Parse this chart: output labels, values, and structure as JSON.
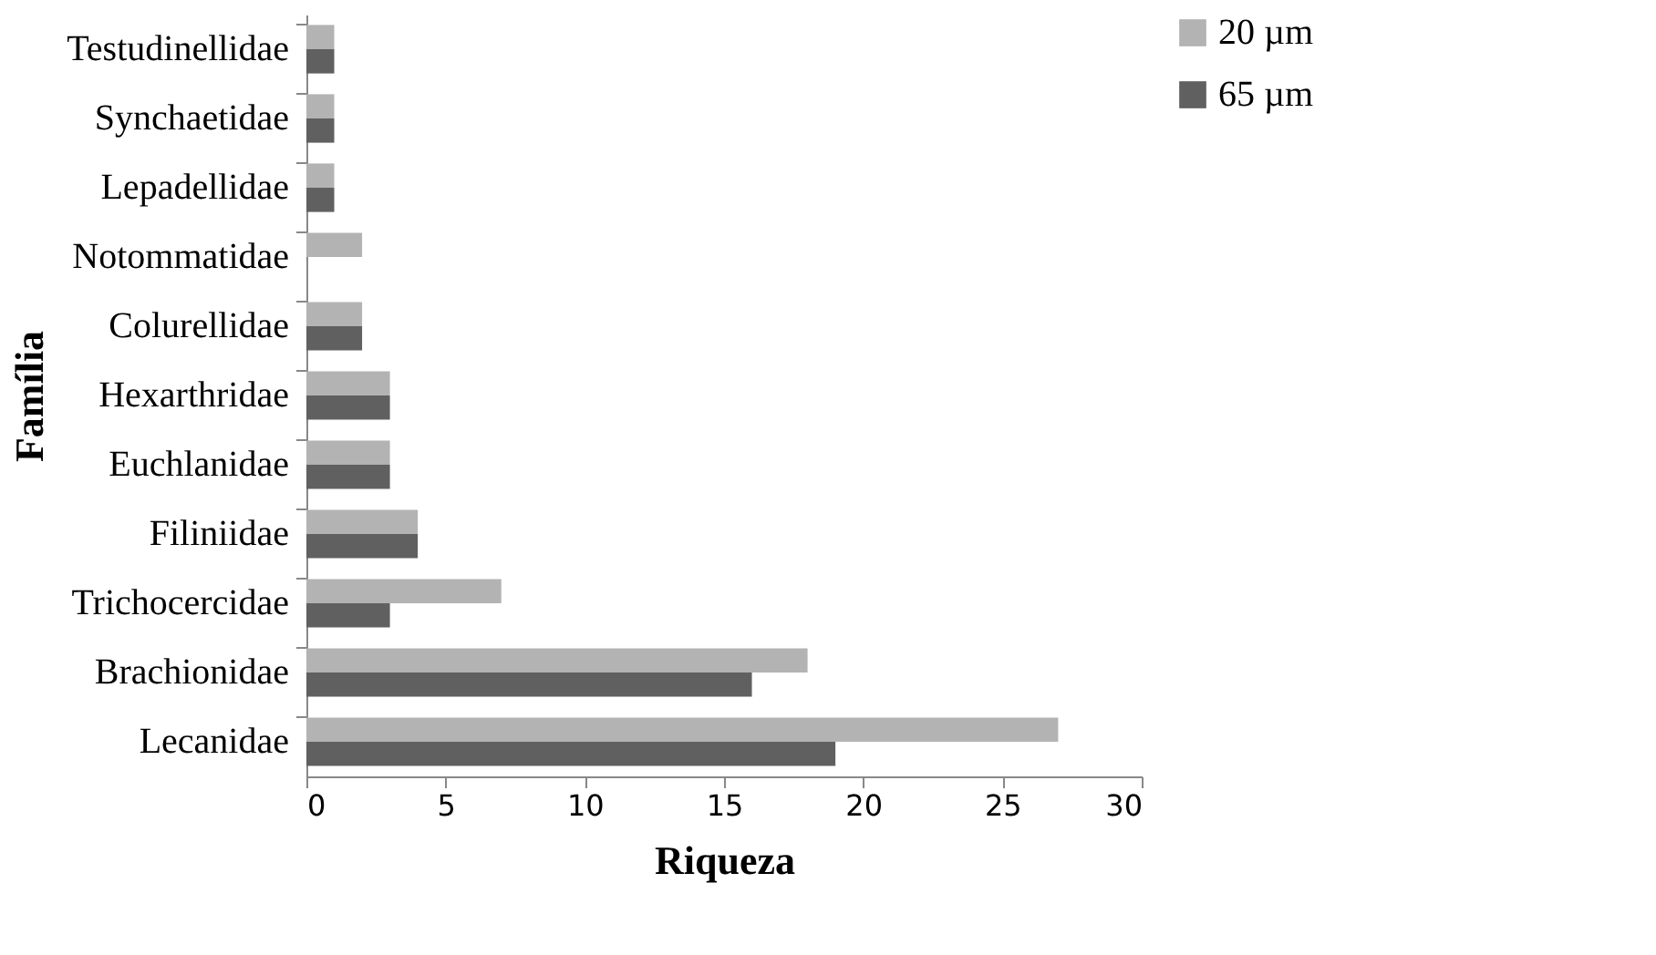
{
  "chart_data": {
    "type": "bar",
    "orientation": "horizontal",
    "xlabel": "Riqueza",
    "ylabel": "Família",
    "categories": [
      "Testudinellidae",
      "Synchaetidae",
      "Lepadellidae",
      "Notommatidae",
      "Colurellidae",
      "Hexarthridae",
      "Euchlanidae",
      "Filiniidae",
      "Trichocercidae",
      "Brachionidae",
      "Lecanidae"
    ],
    "series": [
      {
        "name": "20 µm",
        "color": "#b3b3b3",
        "values": [
          1,
          1,
          1,
          2,
          2,
          3,
          3,
          4,
          7,
          18,
          27
        ]
      },
      {
        "name": "65 µm",
        "color": "#606060",
        "values": [
          1,
          1,
          1,
          0,
          2,
          3,
          3,
          4,
          3,
          16,
          19
        ]
      }
    ],
    "xlim": [
      0,
      30
    ],
    "xticks": [
      0,
      5,
      10,
      15,
      20,
      25,
      30
    ],
    "grid": false,
    "legend": "right"
  }
}
